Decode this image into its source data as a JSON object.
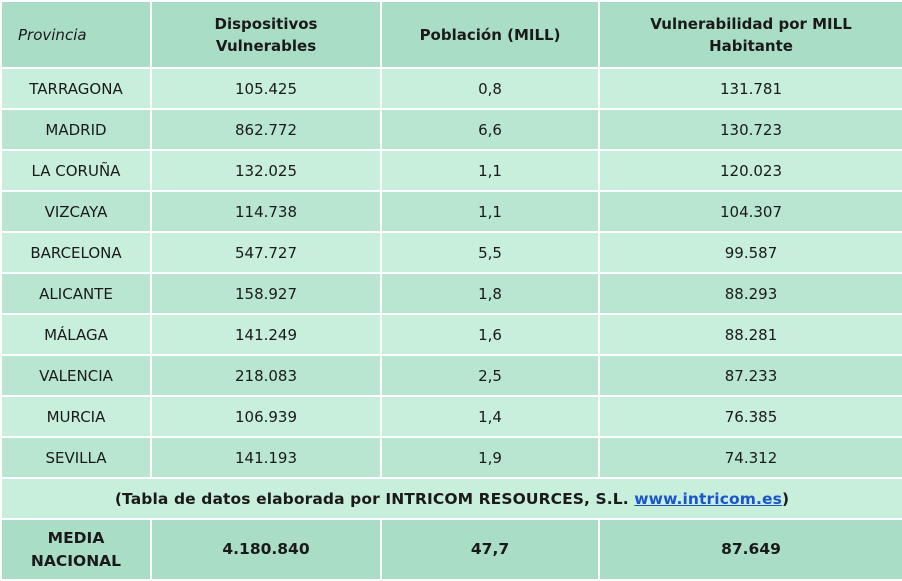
{
  "header": {
    "provincia": "Provincia",
    "dispositivos_line1": "Dispositivos",
    "dispositivos_line2": "Vulnerables",
    "poblacion": "Población (MILL)",
    "vulnerabilidad_line1": "Vulnerabilidad por MILL",
    "vulnerabilidad_line2": "Habitante"
  },
  "rows": [
    {
      "provincia": "TARRAGONA",
      "dispositivos": "105.425",
      "poblacion": "0,8",
      "vulnerabilidad": "131.781"
    },
    {
      "provincia": "MADRID",
      "dispositivos": "862.772",
      "poblacion": "6,6",
      "vulnerabilidad": "130.723"
    },
    {
      "provincia": "LA CORUÑA",
      "dispositivos": "132.025",
      "poblacion": "1,1",
      "vulnerabilidad": "120.023"
    },
    {
      "provincia": "VIZCAYA",
      "dispositivos": "114.738",
      "poblacion": "1,1",
      "vulnerabilidad": "104.307"
    },
    {
      "provincia": "BARCELONA",
      "dispositivos": "547.727",
      "poblacion": "5,5",
      "vulnerabilidad": "99.587"
    },
    {
      "provincia": "ALICANTE",
      "dispositivos": "158.927",
      "poblacion": "1,8",
      "vulnerabilidad": "88.293"
    },
    {
      "provincia": "MÁLAGA",
      "dispositivos": "141.249",
      "poblacion": "1,6",
      "vulnerabilidad": "88.281"
    },
    {
      "provincia": "VALENCIA",
      "dispositivos": "218.083",
      "poblacion": "2,5",
      "vulnerabilidad": "87.233"
    },
    {
      "provincia": "MURCIA",
      "dispositivos": "106.939",
      "poblacion": "1,4",
      "vulnerabilidad": "76.385"
    },
    {
      "provincia": "SEVILLA",
      "dispositivos": "141.193",
      "poblacion": "1,9",
      "vulnerabilidad": "74.312"
    }
  ],
  "note": {
    "prefix": "(Tabla de datos elaborada por INTRICOM RESOURCES, S.L. ",
    "link_text": "www.intricom.es",
    "suffix": ")"
  },
  "total": {
    "label_line1": "MEDIA",
    "label_line2": "NACIONAL",
    "dispositivos": "4.180.840",
    "poblacion": "47,7",
    "vulnerabilidad": "87.649"
  },
  "colors": {
    "header_bg": "#aaddc6",
    "row_bg": "#c8eedc",
    "link": "#1a55cc"
  }
}
